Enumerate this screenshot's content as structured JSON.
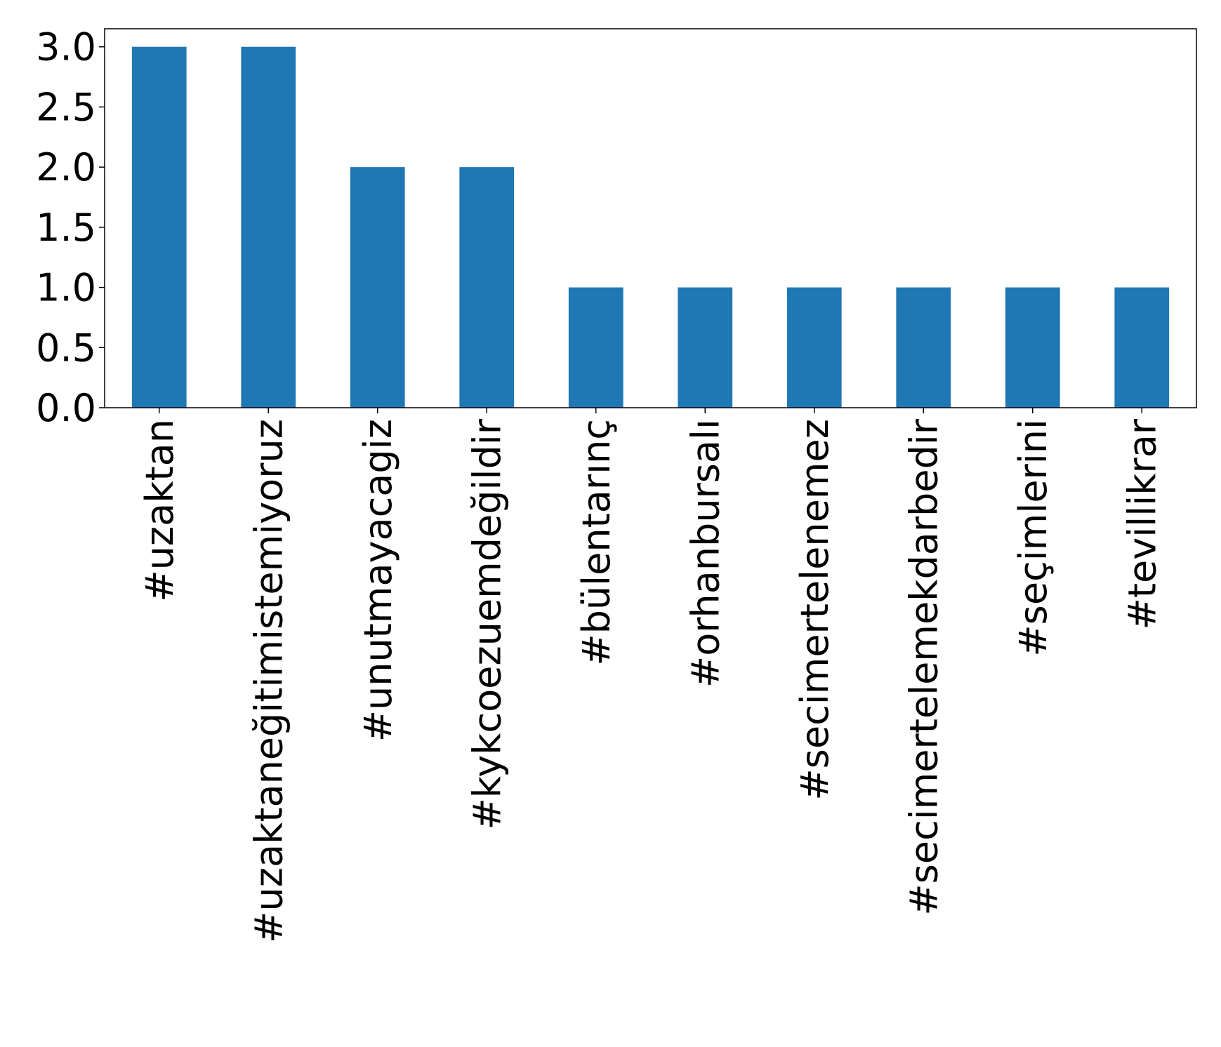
{
  "chart_data": {
    "type": "bar",
    "categories": [
      "#uzaktan",
      "#uzaktaneğitimistemiyoruz",
      "#unutmayacagiz",
      "#kykcoezuemdeğildir",
      "#bülentarınç",
      "#orhanbursalı",
      "#secimertelenemez",
      "#secimertelemekdarbedir",
      "#seçimlerini",
      "#tevillikrar"
    ],
    "values": [
      3,
      3,
      2,
      2,
      1,
      1,
      1,
      1,
      1,
      1
    ],
    "title": "",
    "xlabel": "",
    "ylabel": "",
    "ylim": [
      0,
      3.15
    ],
    "yticks": [
      0.0,
      0.5,
      1.0,
      1.5,
      2.0,
      2.5,
      3.0
    ],
    "ytick_labels": [
      "0.0",
      "0.5",
      "1.0",
      "1.5",
      "2.0",
      "2.5",
      "3.0"
    ],
    "grid": false,
    "legend": "none",
    "bar_color": "#1f77b4"
  }
}
